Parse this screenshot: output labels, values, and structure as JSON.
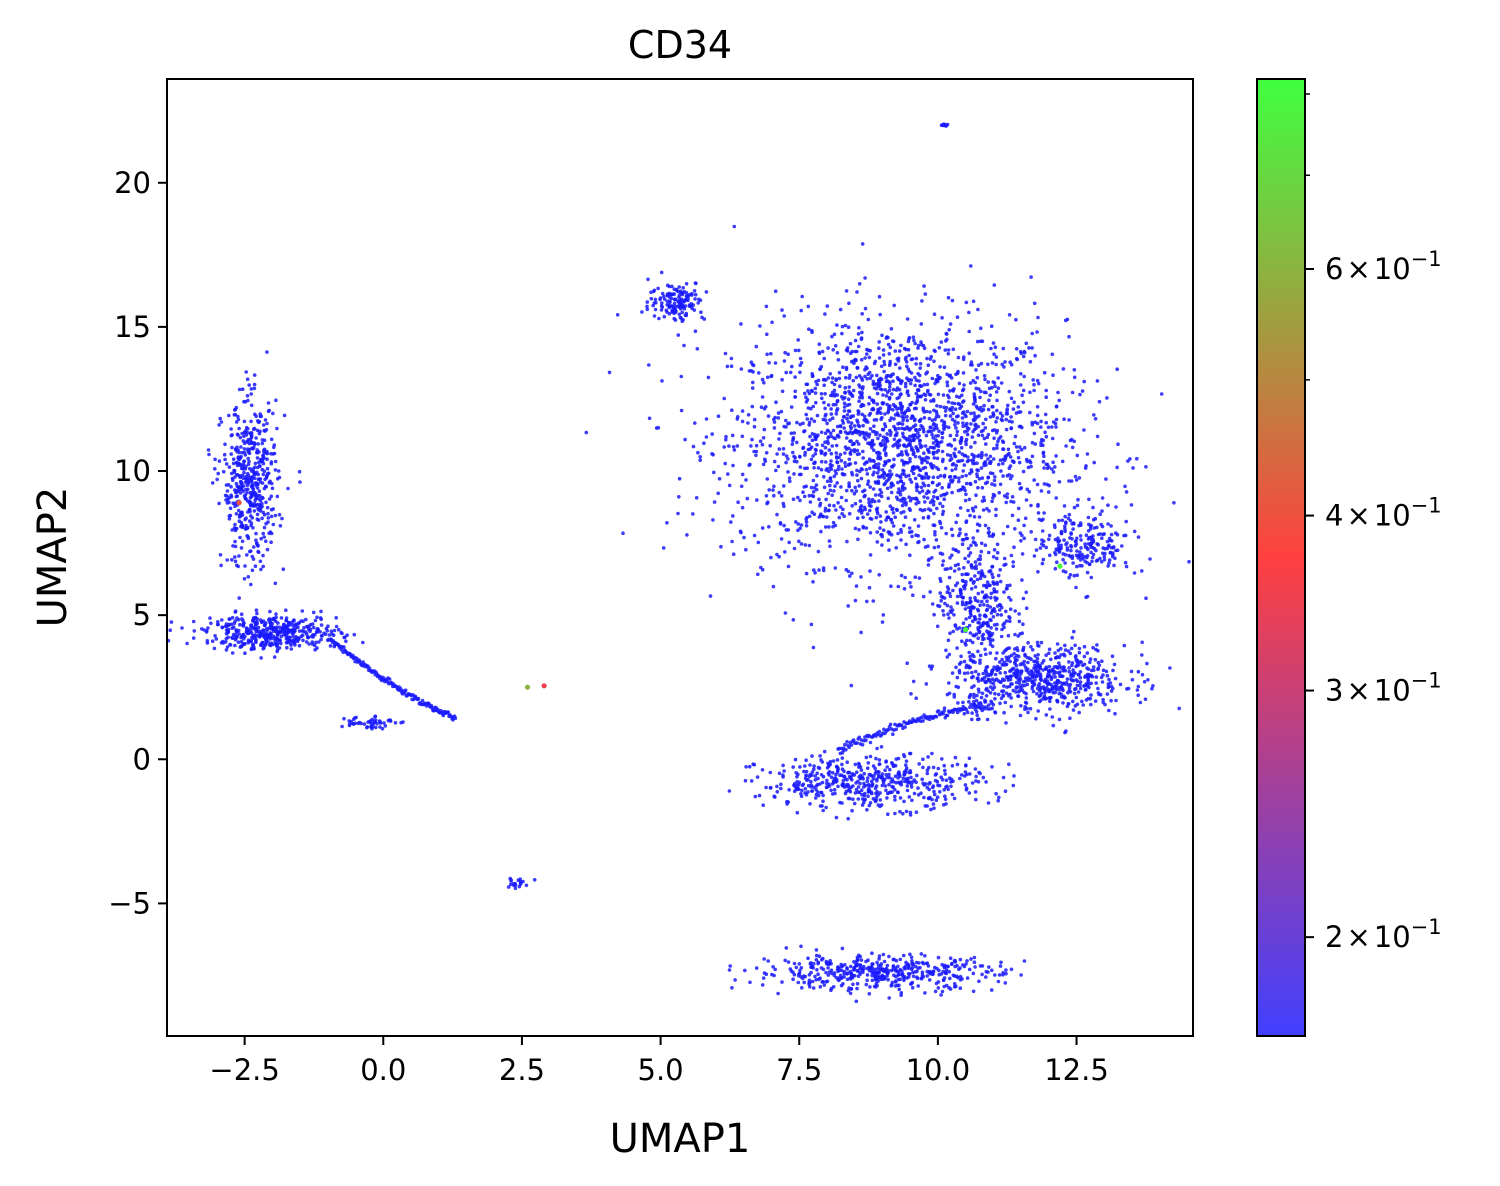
{
  "chart_data": {
    "type": "scatter",
    "title": "CD34",
    "xlabel": "UMAP1",
    "ylabel": "UMAP2",
    "xlim": [
      -3.9,
      14.6
    ],
    "ylim": [
      -9.6,
      23.6
    ],
    "grid": false,
    "legend": "none",
    "x_ticks": [
      -2.5,
      0.0,
      2.5,
      5.0,
      7.5,
      10.0,
      12.5
    ],
    "x_tick_labels": [
      "−2.5",
      "0.0",
      "2.5",
      "5.0",
      "7.5",
      "10.0",
      "12.5"
    ],
    "y_ticks": [
      -5,
      0,
      5,
      10,
      15,
      20
    ],
    "y_tick_labels": [
      "−5",
      "0",
      "5",
      "10",
      "15",
      "20"
    ],
    "colorbar": {
      "scale": "log",
      "range": [
        0.17,
        0.82
      ],
      "colors": [
        "#4040ff",
        "#ff4040",
        "#40ff40"
      ],
      "ticks": [
        0.2,
        0.3,
        0.4,
        0.6
      ],
      "tick_labels": [
        {
          "mantissa": "2",
          "times": "×",
          "base": "10",
          "exponent": "−1"
        },
        {
          "mantissa": "3",
          "times": "×",
          "base": "10",
          "exponent": "−1"
        },
        {
          "mantissa": "4",
          "times": "×",
          "base": "10",
          "exponent": "−1"
        },
        {
          "mantissa": "6",
          "times": "×",
          "base": "10",
          "exponent": "−1"
        }
      ],
      "minor_ticks": [
        0.5,
        0.7,
        0.8
      ]
    },
    "point_color": "#1a1aff",
    "clusters": [
      {
        "name": "large-upper-right",
        "center": [
          9.3,
          11.0
        ],
        "spread": [
          1.5,
          2.1
        ],
        "count": 2200
      },
      {
        "name": "neck-right",
        "center": [
          10.7,
          5.5
        ],
        "spread": [
          0.35,
          1.0
        ],
        "count": 300
      },
      {
        "name": "right-lower-lobe",
        "center": [
          11.8,
          2.8
        ],
        "spread": [
          0.8,
          0.6
        ],
        "count": 650
      },
      {
        "name": "small-right-satellite",
        "center": [
          12.6,
          7.4
        ],
        "spread": [
          0.45,
          0.6
        ],
        "count": 220
      },
      {
        "name": "arc-bottom",
        "center": [
          8.8,
          -0.8
        ],
        "spread": [
          1.0,
          0.45
        ],
        "count": 500
      },
      {
        "name": "lower-elongated",
        "center": [
          8.9,
          -7.4
        ],
        "spread": [
          1.1,
          0.3
        ],
        "count": 450
      },
      {
        "name": "top-small",
        "center": [
          5.3,
          15.9
        ],
        "spread": [
          0.25,
          0.35
        ],
        "count": 150
      },
      {
        "name": "left-vertical",
        "center": [
          -2.4,
          9.5
        ],
        "spread": [
          0.25,
          1.4
        ],
        "count": 500
      },
      {
        "name": "left-horizontal",
        "center": [
          -2.0,
          4.4
        ],
        "spread": [
          0.6,
          0.3
        ],
        "count": 450
      },
      {
        "name": "left-small-curve",
        "center": [
          -0.3,
          1.3
        ],
        "spread": [
          0.25,
          0.12
        ],
        "count": 50
      },
      {
        "name": "tiny-top",
        "center": [
          10.1,
          22.0
        ],
        "spread": [
          0.05,
          0.03
        ],
        "count": 10
      },
      {
        "name": "line-lower-left",
        "center": [
          2.4,
          -4.3
        ],
        "spread": [
          0.1,
          0.1
        ],
        "count": 20
      }
    ],
    "highlighted_points": [
      {
        "x": 2.9,
        "y": 2.55,
        "value": 0.35
      },
      {
        "x": 2.6,
        "y": 2.5,
        "value": 0.6
      },
      {
        "x": -2.6,
        "y": 8.9,
        "value": 0.4
      },
      {
        "x": 12.2,
        "y": 6.7,
        "value": 0.8
      },
      {
        "x": 10.5,
        "y": 4.5,
        "value": 0.8
      }
    ]
  }
}
